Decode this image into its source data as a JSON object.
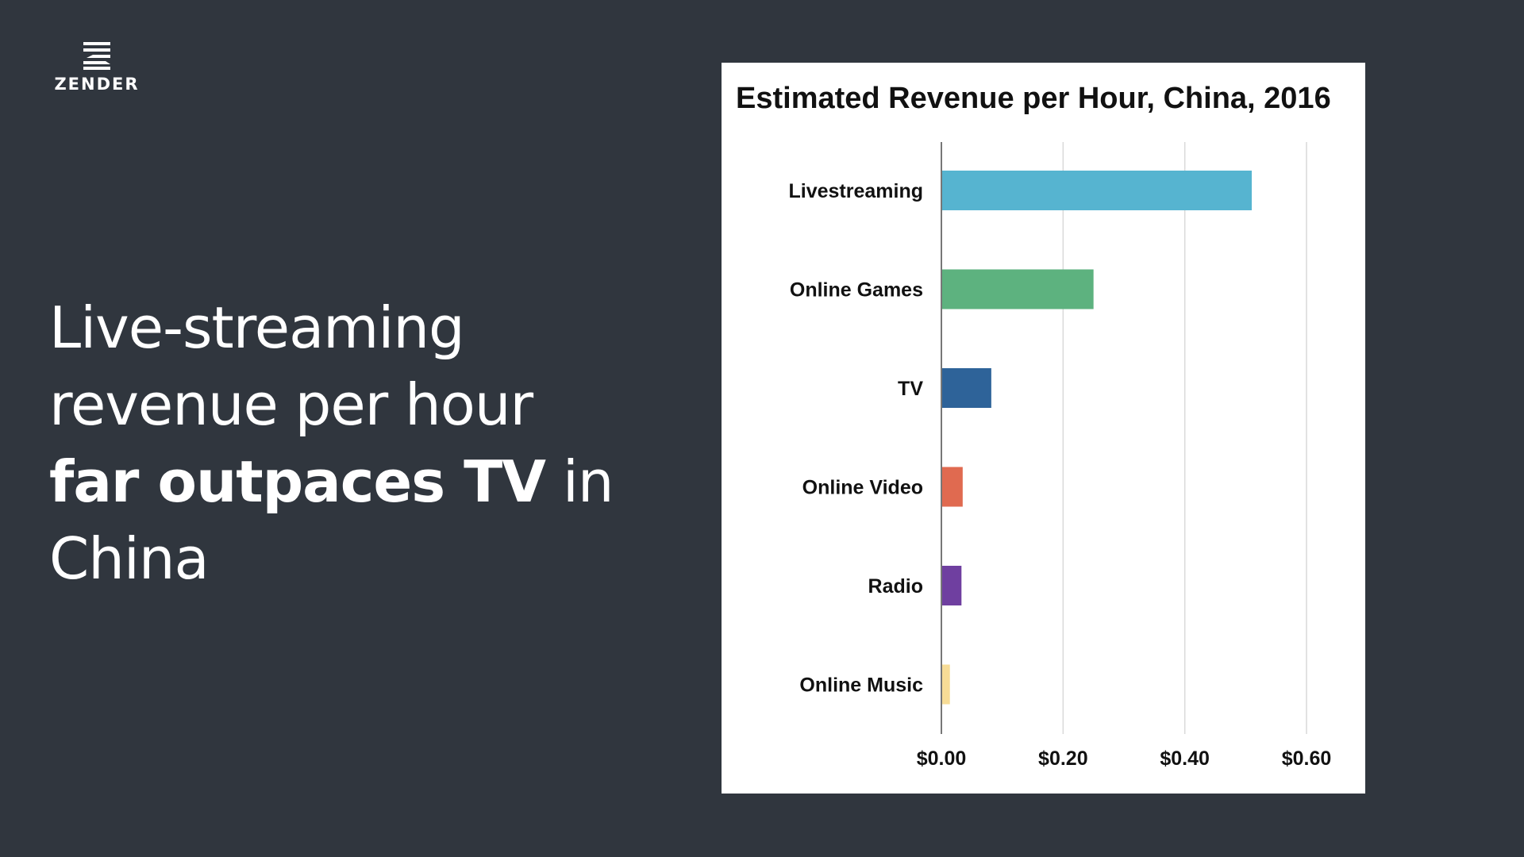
{
  "logo": {
    "text": "ZENDER",
    "icon": "zender-stripes-logo"
  },
  "headline": {
    "line1": "Live-streaming",
    "line2": "revenue per hour",
    "line3_strong": "far outpaces TV",
    "line3_rest": " in",
    "line4": "China"
  },
  "chart_data": {
    "type": "bar",
    "orientation": "horizontal",
    "title": "Estimated Revenue per Hour, China, 2016",
    "categories": [
      "Livestreaming",
      "Online Games",
      "TV",
      "Online Video",
      "Radio",
      "Online Music"
    ],
    "values": [
      0.51,
      0.25,
      0.082,
      0.035,
      0.033,
      0.014
    ],
    "colors": [
      "#56b4d0",
      "#5db27f",
      "#2e6399",
      "#e06a50",
      "#6f3fa0",
      "#f7dc96"
    ],
    "xlim": [
      0,
      0.6
    ],
    "xticks": [
      0,
      0.2,
      0.4,
      0.6
    ],
    "xtick_labels": [
      "$0.00",
      "$0.20",
      "$0.40",
      "$0.60"
    ],
    "xlabel": "",
    "ylabel": "",
    "grid": true,
    "legend": "none"
  }
}
